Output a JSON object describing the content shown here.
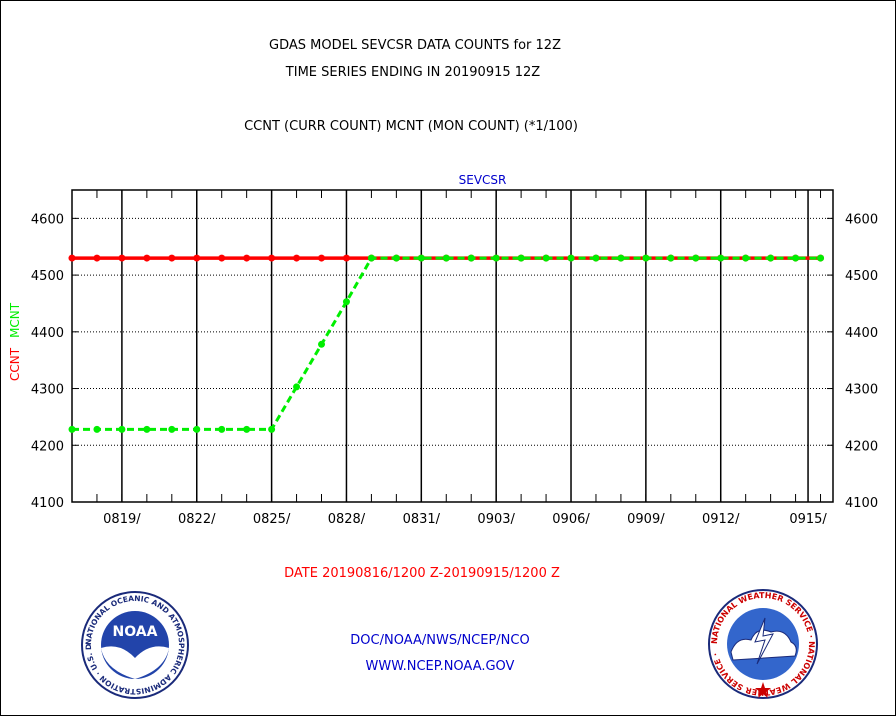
{
  "header": {
    "title_line1": "GDAS MODEL SEVCSR DATA COUNTS for 12Z",
    "title_line2": "TIME SERIES ENDING IN 20190915 12Z",
    "subtitle": "CCNT (CURR COUNT) MCNT (MON COUNT) (*1/100)"
  },
  "footer": {
    "date_range": "DATE 20190816/1200 Z-20190915/1200 Z",
    "org": "DOC/NOAA/NWS/NCEP/NCO",
    "website": "WWW.NCEP.NOAA.GOV"
  },
  "logos": {
    "left": {
      "icon": "noaa-logo-icon",
      "label": "NOAA",
      "ring_text": "NATIONAL OCEANIC AND ATMOSPHERIC ADMINISTRATION · U.S. DEPARTMENT OF COMMERCE ·"
    },
    "right": {
      "icon": "nws-logo-icon",
      "ring_text": "NATIONAL WEATHER SERVICE · NATIONAL WEATHER SERVICE ·"
    }
  },
  "colors": {
    "ccnt": "#ff0000",
    "mcnt": "#00ee00",
    "plot_label": "#0000cc",
    "date_text": "#ff0000",
    "footer_text": "#0000cc"
  },
  "chart_data": {
    "type": "line",
    "plot_label": "SEVCSR",
    "ylabel_ccnt": "CCNT",
    "ylabel_mcnt": "MCNT",
    "ylim": [
      4100,
      4650
    ],
    "yticks": [
      4100,
      4200,
      4300,
      4400,
      4500,
      4600
    ],
    "xlim": [
      0,
      30.5
    ],
    "xtick_positions": [
      2,
      5,
      8,
      11,
      14,
      17,
      20,
      23,
      26,
      29.5
    ],
    "xtick_labels": [
      "0819/",
      "0822/",
      "0825/",
      "0828/",
      "0831/",
      "0903/",
      "0906/",
      "0909/",
      "0912/",
      "0915/"
    ],
    "grid": true,
    "series": [
      {
        "name": "CCNT",
        "x": [
          0,
          1,
          2,
          3,
          4,
          5,
          6,
          7,
          8,
          9,
          10,
          11,
          12,
          13,
          14,
          15,
          16,
          17,
          18,
          19,
          20,
          21,
          22,
          23,
          24,
          25,
          26,
          27,
          28,
          29,
          30
        ],
        "values": [
          4530,
          4530,
          4530,
          4530,
          4530,
          4530,
          4530,
          4530,
          4530,
          4530,
          4530,
          4530,
          4530,
          4530,
          4530,
          4530,
          4530,
          4530,
          4530,
          4530,
          4530,
          4530,
          4530,
          4530,
          4530,
          4530,
          4530,
          4530,
          4530,
          4530,
          4530
        ]
      },
      {
        "name": "MCNT",
        "x": [
          0,
          1,
          2,
          3,
          4,
          5,
          6,
          7,
          8,
          9,
          10,
          11,
          12,
          13,
          14,
          15,
          16,
          17,
          18,
          19,
          20,
          21,
          22,
          23,
          24,
          25,
          26,
          27,
          28,
          29,
          30
        ],
        "values": [
          4228,
          4228,
          4228,
          4228,
          4228,
          4228,
          4228,
          4228,
          4228,
          4303,
          4378,
          4453,
          4530,
          4530,
          4530,
          4530,
          4530,
          4530,
          4530,
          4530,
          4530,
          4530,
          4530,
          4530,
          4530,
          4530,
          4530,
          4530,
          4530,
          4530,
          4530
        ]
      }
    ]
  }
}
